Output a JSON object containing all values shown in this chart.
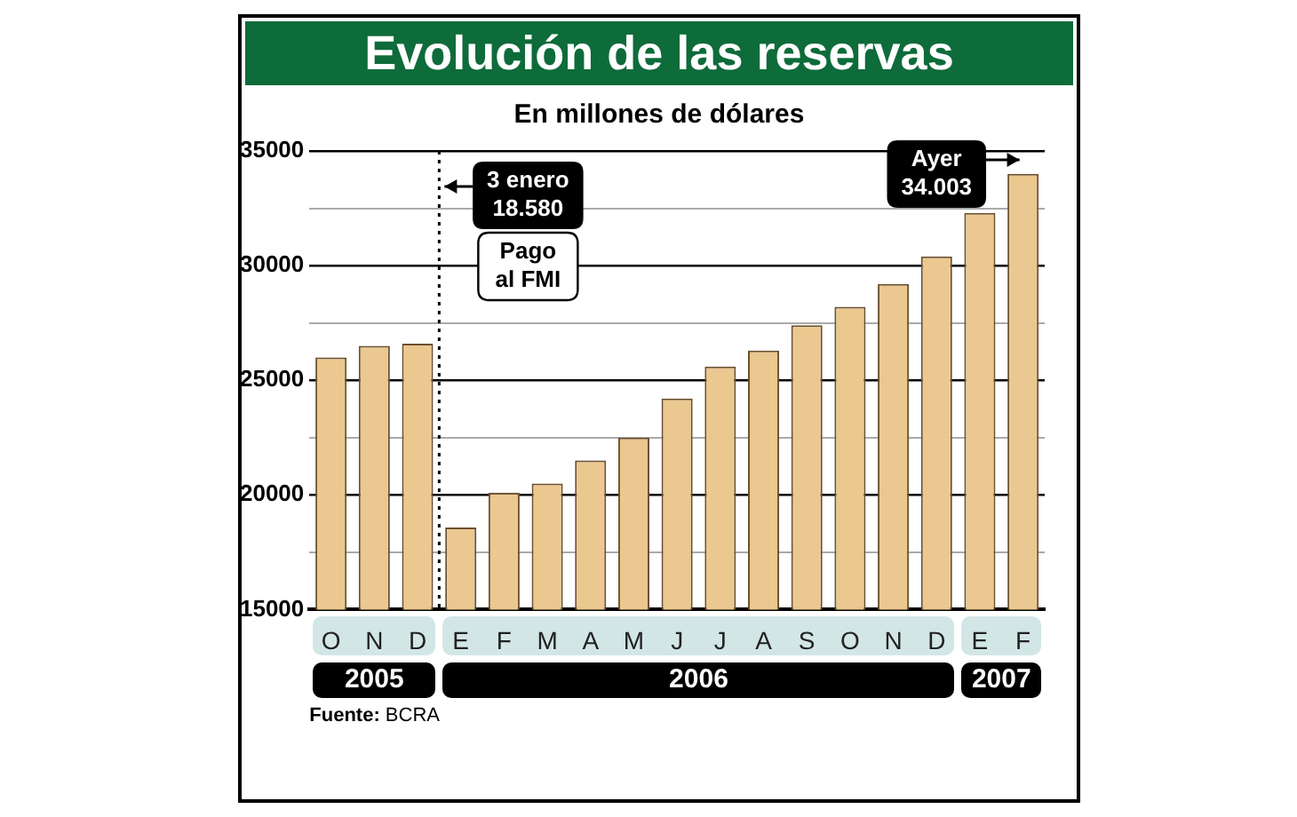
{
  "chart_data": {
    "type": "bar",
    "title": "Evolución de las reservas",
    "subtitle": "En millones de dólares",
    "categories": [
      "O",
      "N",
      "D",
      "E",
      "F",
      "M",
      "A",
      "M",
      "J",
      "J",
      "A",
      "S",
      "O",
      "N",
      "D",
      "E",
      "F"
    ],
    "values": [
      26000,
      26500,
      26600,
      18580,
      20100,
      20500,
      21500,
      22500,
      24200,
      25600,
      26300,
      27400,
      28200,
      29200,
      30400,
      32300,
      34003
    ],
    "color": "#ebc890",
    "ylim": [
      15000,
      35000
    ],
    "yticks": [
      15000,
      {
        "value": 17500,
        "label": null
      },
      20000,
      {
        "value": 22500,
        "label": null
      },
      25000,
      {
        "value": 27500,
        "label": null
      },
      30000,
      {
        "value": 32500,
        "label": null
      },
      35000
    ],
    "grid": "y",
    "ref_lines": [
      {
        "axis": "x",
        "value": "E",
        "label": "Pago al FMI",
        "line_style": "dotted",
        "color": "#000000"
      }
    ],
    "annotations": [
      "3 enero\n18.580",
      "Ayer\n34.003",
      "2005",
      "2006",
      "2007",
      "Fuente: BCRA"
    ]
  }
}
